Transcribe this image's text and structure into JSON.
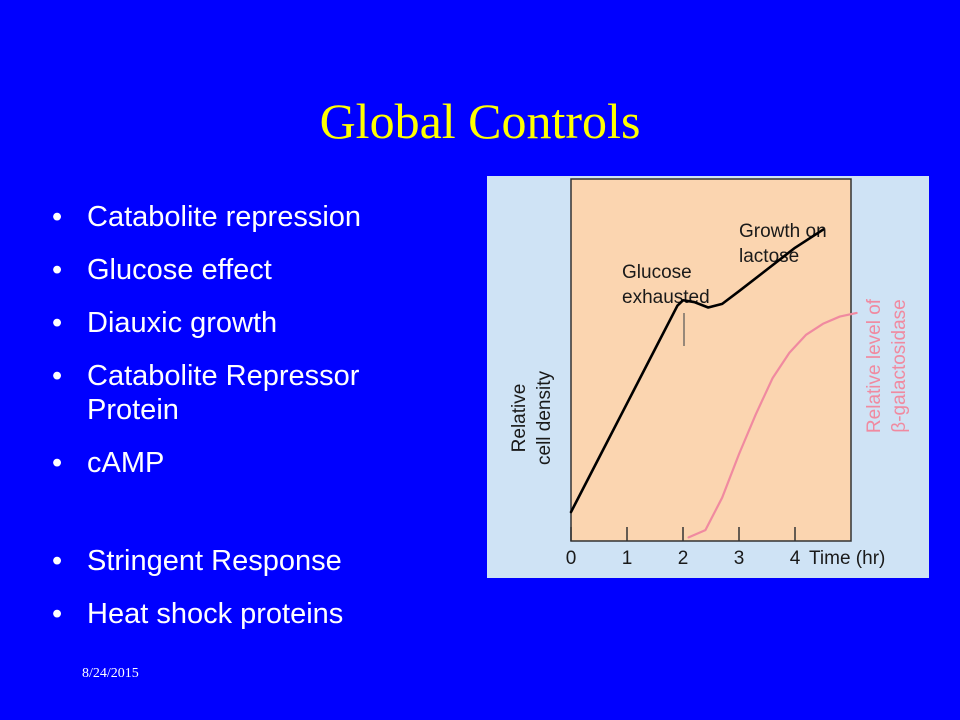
{
  "slide": {
    "title": "Global Controls",
    "bullets": [
      {
        "text": "Catabolite repression"
      },
      {
        "text": "Glucose effect"
      },
      {
        "text": "Diauxic growth"
      },
      {
        "text": "Catabolite Repressor Protein"
      },
      {
        "text": "cAMP"
      },
      {
        "text": "Stringent Response"
      },
      {
        "text": "Heat shock proteins"
      }
    ],
    "bullet_glyph": "•",
    "date": "8/24/2015",
    "colors": {
      "background": "#0000ff",
      "title": "#ffff00",
      "text": "#ffffff"
    }
  },
  "figure": {
    "annotations": {
      "growth_on_lactose_1": "Growth on",
      "growth_on_lactose_2": "lactose",
      "glucose_exhausted_1": "Glucose",
      "glucose_exhausted_2": "exhausted"
    },
    "colors": {
      "panel": "#fbd5b0",
      "frame": "#cfe3f5",
      "cell_density": "#000000",
      "beta_gal": "#f08aa0"
    }
  },
  "chart_data": {
    "type": "line",
    "xlabel": "Time (hr)",
    "ylabel": "Relative cell density",
    "ylabel_lines": [
      "Relative",
      "cell density"
    ],
    "y2label": "Relative level of β-galactosidase",
    "y2label_lines": [
      "Relative level of",
      "β-galactosidase"
    ],
    "x_ticks": [
      0,
      1,
      2,
      3,
      4
    ],
    "xlim": [
      0,
      5.1
    ],
    "ylim": [
      0,
      1
    ],
    "grid": false,
    "series": [
      {
        "key": "cell_density",
        "color": "#000000",
        "x": [
          0,
          0.5,
          1,
          1.5,
          1.9,
          2.0,
          2.2,
          2.45,
          2.7,
          3.0,
          3.5,
          4.0,
          4.5
        ],
        "y": [
          0.08,
          0.23,
          0.38,
          0.53,
          0.65,
          0.665,
          0.66,
          0.645,
          0.655,
          0.69,
          0.75,
          0.81,
          0.86
        ]
      },
      {
        "key": "beta_galactosidase",
        "color": "#f08aa0",
        "x": [
          2.1,
          2.4,
          2.7,
          3.0,
          3.3,
          3.6,
          3.9,
          4.2,
          4.5,
          4.8,
          5.1
        ],
        "y": [
          0.01,
          0.03,
          0.12,
          0.24,
          0.35,
          0.45,
          0.52,
          0.57,
          0.6,
          0.62,
          0.63
        ]
      }
    ]
  }
}
